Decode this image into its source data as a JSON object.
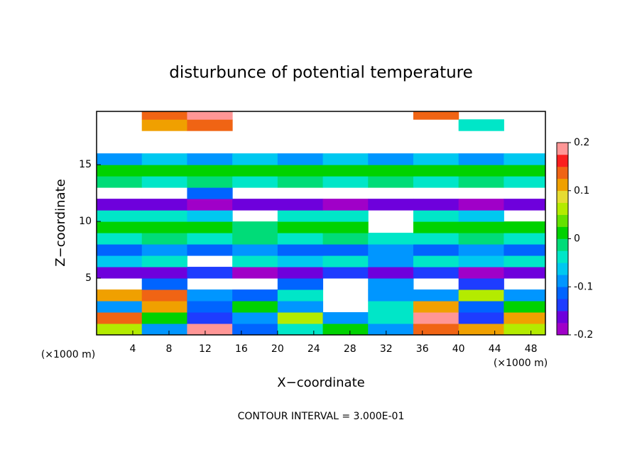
{
  "chart_data": {
    "type": "heatmap",
    "title": "disturbunce of potential temperature",
    "x_label": "X−coordinate",
    "y_label": "Z−coordinate",
    "x_unit": "(×1000 m)",
    "y_unit": "(×1000 m)",
    "footnote": "CONTOUR INTERVAL = 3.000E-01",
    "xlim": [
      0,
      49.6
    ],
    "ylim": [
      0,
      19.7
    ],
    "xticks": [
      4,
      8,
      12,
      16,
      20,
      24,
      28,
      32,
      36,
      40,
      44,
      48
    ],
    "yticks": [
      5,
      10,
      15
    ],
    "x": [
      2.5,
      7.5,
      12.5,
      17.5,
      22.5,
      27.5,
      32.5,
      37.5,
      42.5,
      47.5
    ],
    "y": [
      0.5,
      1.5,
      2.5,
      3.5,
      4.5,
      5.5,
      6.5,
      7.5,
      8.5,
      9.5,
      10.5,
      11.5,
      12.5,
      13.5,
      14.5,
      15.5,
      16.5,
      17.5,
      18.5,
      19.5
    ],
    "z": [
      [
        0.05,
        -0.1,
        0.18,
        -0.12,
        -0.05,
        0.02,
        -0.08,
        0.15,
        0.12,
        0.05
      ],
      [
        0.15,
        0.02,
        -0.15,
        -0.08,
        0.05,
        -0.1,
        -0.05,
        0.18,
        -0.15,
        0.1
      ],
      [
        -0.08,
        0.12,
        -0.12,
        0.02,
        -0.1,
        null,
        -0.05,
        0.1,
        -0.12,
        0.02
      ],
      [
        0.1,
        0.15,
        -0.08,
        -0.12,
        -0.05,
        null,
        -0.08,
        -0.1,
        0.05,
        -0.08
      ],
      [
        null,
        -0.12,
        null,
        null,
        -0.12,
        null,
        -0.1,
        null,
        -0.13,
        null
      ],
      [
        -0.17,
        -0.17,
        -0.15,
        -0.18,
        -0.17,
        -0.15,
        -0.17,
        -0.15,
        -0.18,
        -0.17
      ],
      [
        -0.06,
        -0.05,
        null,
        -0.04,
        -0.06,
        -0.05,
        -0.08,
        -0.05,
        -0.06,
        -0.05
      ],
      [
        -0.11,
        -0.1,
        -0.12,
        -0.1,
        -0.11,
        -0.12,
        -0.1,
        -0.11,
        -0.1,
        -0.11
      ],
      [
        -0.03,
        -0.02,
        -0.04,
        -0.02,
        -0.03,
        -0.02,
        -0.03,
        -0.04,
        -0.02,
        -0.03
      ],
      [
        0.0,
        0.01,
        0.0,
        -0.01,
        0.0,
        0.01,
        null,
        0.0,
        0.01,
        0.0
      ],
      [
        -0.05,
        -0.04,
        -0.06,
        null,
        -0.05,
        -0.04,
        null,
        -0.05,
        -0.06,
        null
      ],
      [
        -0.17,
        -0.16,
        -0.18,
        -0.17,
        -0.16,
        -0.18,
        -0.17,
        -0.16,
        -0.18,
        -0.17
      ],
      [
        null,
        null,
        -0.12,
        null,
        null,
        null,
        null,
        null,
        null,
        null
      ],
      [
        -0.02,
        -0.03,
        -0.02,
        -0.04,
        -0.02,
        -0.03,
        -0.02,
        -0.03,
        -0.02,
        -0.04
      ],
      [
        0.01,
        0.0,
        0.01,
        0.02,
        0.01,
        0.0,
        0.01,
        0.0,
        0.01,
        0.0
      ],
      [
        -0.08,
        -0.07,
        -0.08,
        -0.07,
        -0.08,
        -0.07,
        -0.08,
        -0.07,
        -0.08,
        -0.07
      ],
      [
        null,
        null,
        null,
        null,
        null,
        null,
        null,
        null,
        null,
        null
      ],
      [
        null,
        null,
        null,
        null,
        null,
        null,
        null,
        null,
        null,
        null
      ],
      [
        null,
        0.1,
        0.15,
        null,
        null,
        null,
        null,
        null,
        -0.05,
        null
      ],
      [
        null,
        0.15,
        0.18,
        null,
        null,
        null,
        null,
        0.15,
        null,
        null
      ]
    ],
    "clim": [
      -0.2,
      0.2
    ],
    "cticks": [
      -0.2,
      -0.1,
      0,
      0.1,
      0.2
    ],
    "colors": [
      "#a000c8",
      "#6e00dc",
      "#1e3cff",
      "#0064ff",
      "#0096ff",
      "#00c8f0",
      "#00e6c8",
      "#00dc78",
      "#00d200",
      "#64e100",
      "#b4eb00",
      "#e6dc32",
      "#f0a000",
      "#f06414",
      "#fa1e1e",
      "#ff9696"
    ]
  }
}
